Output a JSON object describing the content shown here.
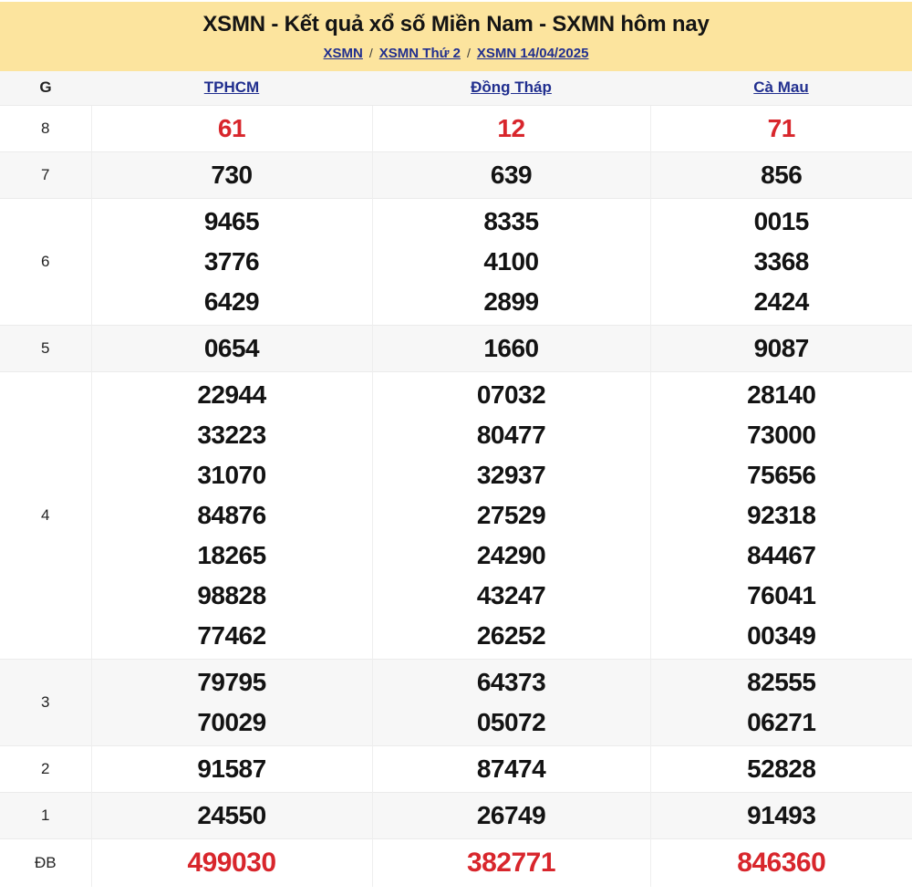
{
  "header": {
    "title": "XSMN - Kết quả xổ số Miền Nam - SXMN hôm nay",
    "breadcrumb": [
      "XSMN",
      "XSMN Thứ 2",
      "XSMN 14/04/2025"
    ],
    "separator": "/"
  },
  "table": {
    "corner_label": "G",
    "columns": [
      "TPHCM",
      "Đồng Tháp",
      "Cà Mau"
    ],
    "rows": [
      {
        "label": "8",
        "highlight": true,
        "cells": [
          [
            "61"
          ],
          [
            "12"
          ],
          [
            "71"
          ]
        ]
      },
      {
        "label": "7",
        "highlight": false,
        "cells": [
          [
            "730"
          ],
          [
            "639"
          ],
          [
            "856"
          ]
        ]
      },
      {
        "label": "6",
        "highlight": false,
        "cells": [
          [
            "9465",
            "3776",
            "6429"
          ],
          [
            "8335",
            "4100",
            "2899"
          ],
          [
            "0015",
            "3368",
            "2424"
          ]
        ]
      },
      {
        "label": "5",
        "highlight": false,
        "cells": [
          [
            "0654"
          ],
          [
            "1660"
          ],
          [
            "9087"
          ]
        ]
      },
      {
        "label": "4",
        "highlight": false,
        "cells": [
          [
            "22944",
            "33223",
            "31070",
            "84876",
            "18265",
            "98828",
            "77462"
          ],
          [
            "07032",
            "80477",
            "32937",
            "27529",
            "24290",
            "43247",
            "26252"
          ],
          [
            "28140",
            "73000",
            "75656",
            "92318",
            "84467",
            "76041",
            "00349"
          ]
        ]
      },
      {
        "label": "3",
        "highlight": false,
        "cells": [
          [
            "79795",
            "70029"
          ],
          [
            "64373",
            "05072"
          ],
          [
            "82555",
            "06271"
          ]
        ]
      },
      {
        "label": "2",
        "highlight": false,
        "cells": [
          [
            "91587"
          ],
          [
            "87474"
          ],
          [
            "52828"
          ]
        ]
      },
      {
        "label": "1",
        "highlight": false,
        "cells": [
          [
            "24550"
          ],
          [
            "26749"
          ],
          [
            "91493"
          ]
        ]
      },
      {
        "label": "ĐB",
        "highlight": true,
        "cells": [
          [
            "499030"
          ],
          [
            "382771"
          ],
          [
            "846360"
          ]
        ]
      }
    ]
  },
  "colors": {
    "banner_yellow": "#fce49e",
    "accent_red": "#d8262c",
    "link_blue": "#212f8f",
    "stripe_bg": "#f7f7f7"
  }
}
